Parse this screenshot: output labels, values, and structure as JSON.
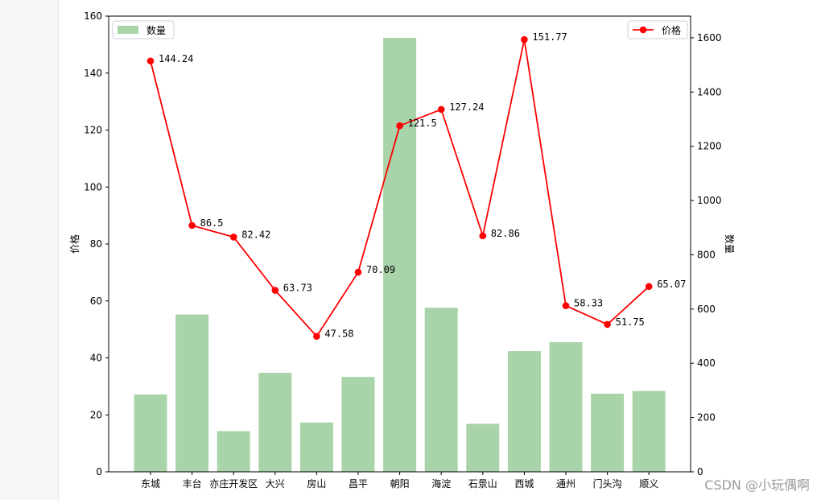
{
  "chart_data": {
    "type": "bar+line",
    "categories": [
      "东城",
      "丰台",
      "亦庄开发区",
      "大兴",
      "房山",
      "昌平",
      "朝阳",
      "海淀",
      "石景山",
      "西城",
      "通州",
      "门头沟",
      "顺义"
    ],
    "series": [
      {
        "name": "数量",
        "type": "bar",
        "axis": "right",
        "color": "#a9d4a9",
        "values": [
          285,
          580,
          150,
          365,
          182,
          350,
          1600,
          605,
          177,
          445,
          478,
          288,
          298
        ]
      },
      {
        "name": "价格",
        "type": "line",
        "axis": "left",
        "color": "#ff0000",
        "values": [
          144.24,
          86.5,
          82.42,
          63.73,
          47.58,
          70.09,
          121.5,
          127.24,
          82.86,
          151.77,
          58.33,
          51.75,
          65.07
        ],
        "labels": [
          "144.24",
          "86.5",
          "82.42",
          "63.73",
          "47.58",
          "70.09",
          "121.5",
          "127.24",
          "82.86",
          "151.77",
          "58.33",
          "51.75",
          "65.07"
        ]
      }
    ],
    "ylabel_left": "价格",
    "ylabel_right": "数量",
    "ylim_left": [
      0,
      160
    ],
    "ylim_right": [
      0,
      1680
    ],
    "yticks_left": [
      0,
      20,
      40,
      60,
      80,
      100,
      120,
      140,
      160
    ],
    "yticks_right": [
      0,
      200,
      400,
      600,
      800,
      1000,
      1200,
      1400,
      1600
    ],
    "legend_left": {
      "label": "数量",
      "placement": "top-left"
    },
    "legend_right": {
      "label": "价格",
      "placement": "top-right"
    }
  },
  "watermark": "CSDN @小玩偶啊"
}
